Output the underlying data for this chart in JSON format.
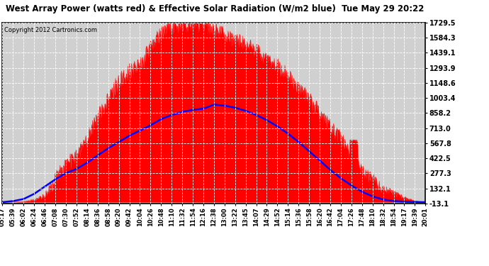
{
  "title": "West Array Power (watts red) & Effective Solar Radiation (W/m2 blue)  Tue May 29 20:22",
  "copyright": "Copyright 2012 Cartronics.com",
  "ymin": -13.1,
  "ymax": 1729.5,
  "yticks": [
    -13.1,
    132.1,
    277.3,
    422.5,
    567.8,
    713.0,
    858.2,
    1003.4,
    1148.6,
    1293.9,
    1439.1,
    1584.3,
    1729.5
  ],
  "xtick_labels": [
    "05:17",
    "05:39",
    "06:02",
    "06:24",
    "06:46",
    "07:08",
    "07:30",
    "07:52",
    "08:14",
    "08:36",
    "08:58",
    "09:20",
    "09:42",
    "10:04",
    "10:26",
    "10:48",
    "11:10",
    "11:32",
    "11:54",
    "12:16",
    "12:38",
    "13:00",
    "13:22",
    "13:45",
    "14:07",
    "14:29",
    "14:52",
    "15:14",
    "15:36",
    "15:58",
    "16:20",
    "16:42",
    "17:04",
    "17:26",
    "17:48",
    "18:10",
    "18:32",
    "18:54",
    "19:17",
    "19:39",
    "20:01"
  ],
  "bg_color": "#ffffff",
  "plot_bg_color": "#d0d0d0",
  "grid_color": "#ffffff",
  "red_color": "#ff0000",
  "blue_color": "#0000ff",
  "title_color": "#000000",
  "border_color": "#000000"
}
